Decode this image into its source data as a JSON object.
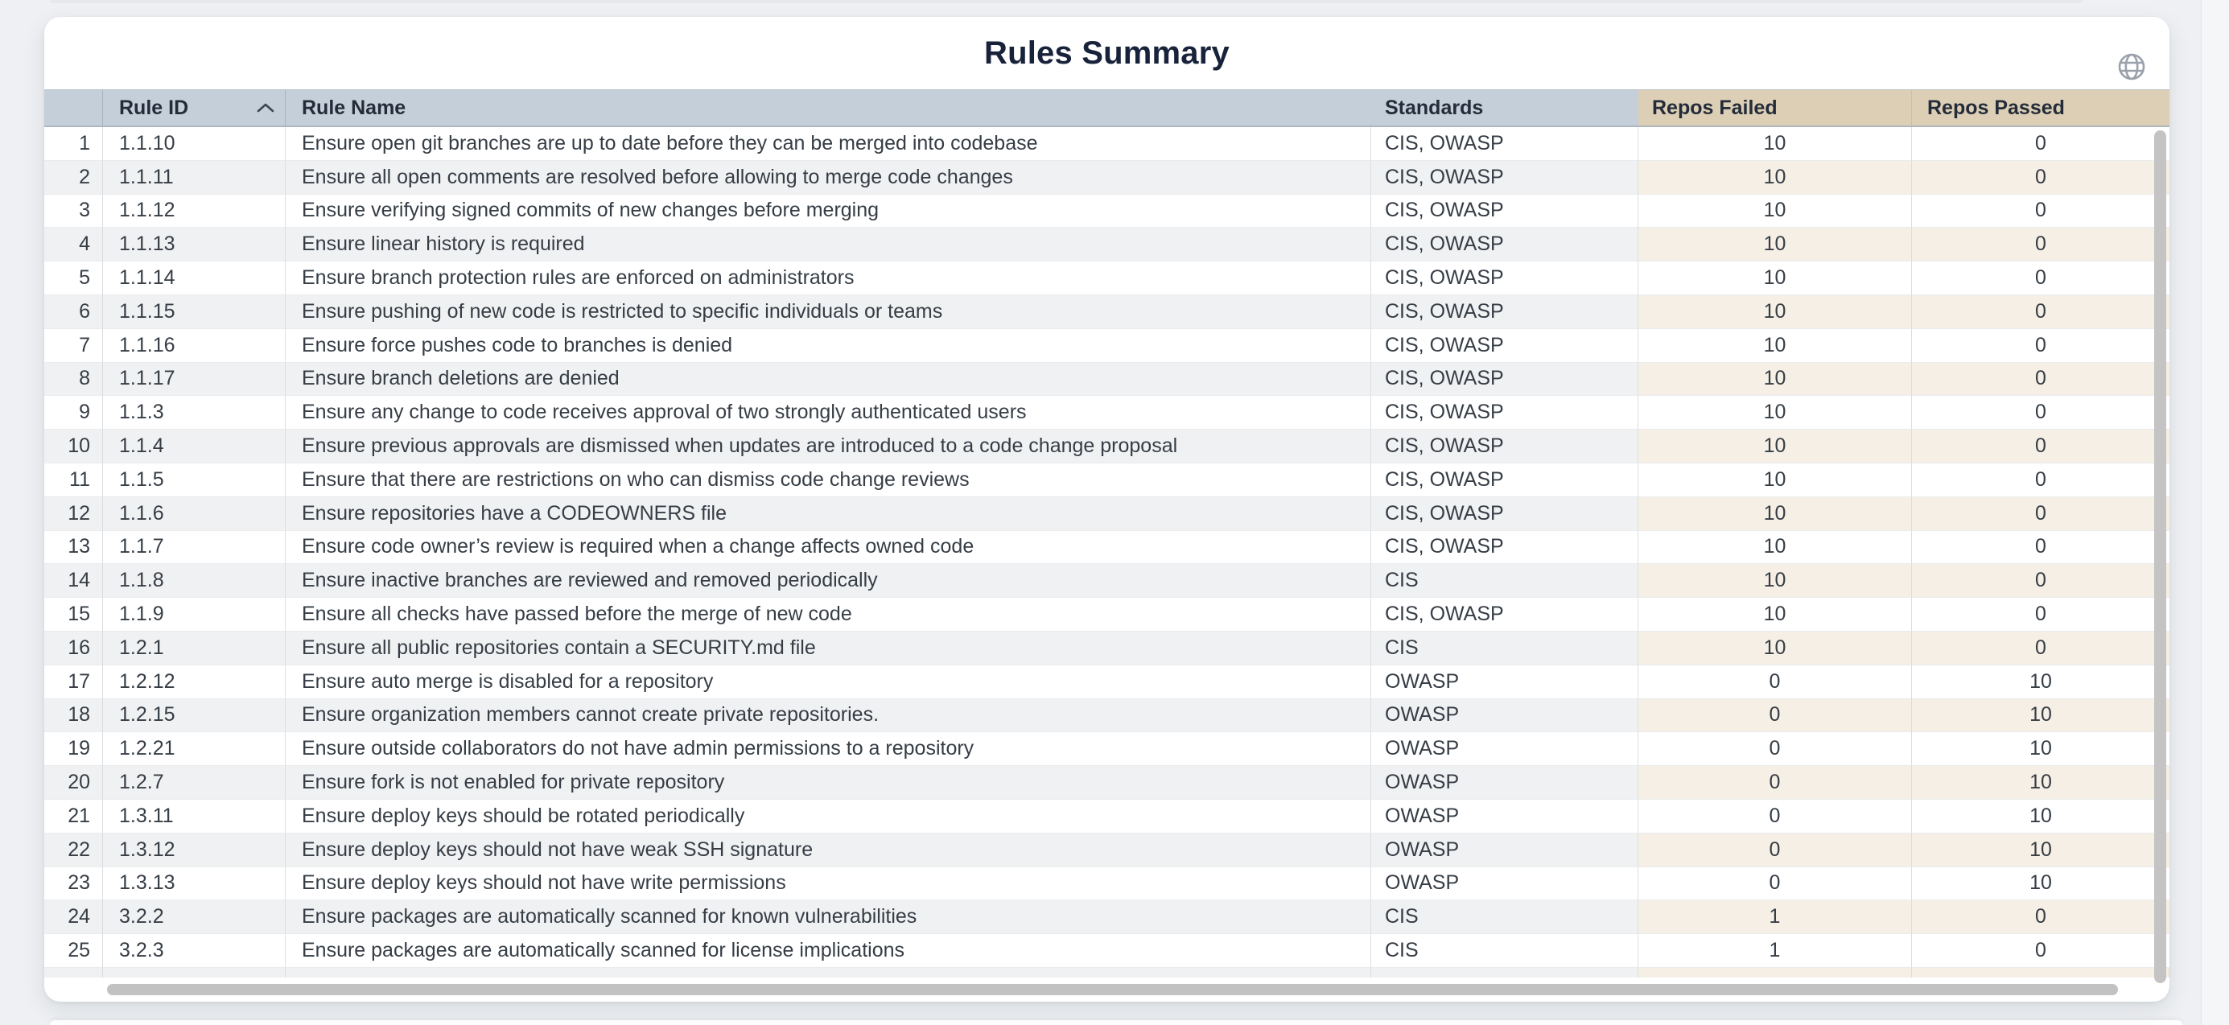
{
  "page": {
    "title": "Rules Summary"
  },
  "colors": {
    "header_blue": "#c5cfda",
    "header_tan": "#ddcfb6",
    "even_row_gray": "#f0f1f2",
    "even_row_beige": "#f6efe5",
    "title_text": "#18223a",
    "cell_text": "#363d45",
    "scrollbar_thumb": "#c2c2c2",
    "globe_icon": "#9aa1ab"
  },
  "sort": {
    "column": "Rule ID",
    "direction": "ascending"
  },
  "table": {
    "columns": [
      {
        "key": "index",
        "label": ""
      },
      {
        "key": "rule_id",
        "label": "Rule ID"
      },
      {
        "key": "rule_name",
        "label": "Rule Name"
      },
      {
        "key": "standards",
        "label": "Standards"
      },
      {
        "key": "repos_failed",
        "label": "Repos Failed"
      },
      {
        "key": "repos_passed",
        "label": "Repos Passed"
      }
    ],
    "rows": [
      {
        "index": 1,
        "rule_id": "1.1.10",
        "rule_name": "Ensure open git branches are up to date before they can be merged into codebase",
        "standards": "CIS, OWASP",
        "repos_failed": 10,
        "repos_passed": 0
      },
      {
        "index": 2,
        "rule_id": "1.1.11",
        "rule_name": "Ensure all open comments are resolved before allowing to merge code changes",
        "standards": "CIS, OWASP",
        "repos_failed": 10,
        "repos_passed": 0
      },
      {
        "index": 3,
        "rule_id": "1.1.12",
        "rule_name": "Ensure verifying signed commits of new changes before merging",
        "standards": "CIS, OWASP",
        "repos_failed": 10,
        "repos_passed": 0
      },
      {
        "index": 4,
        "rule_id": "1.1.13",
        "rule_name": "Ensure linear history is required",
        "standards": "CIS, OWASP",
        "repos_failed": 10,
        "repos_passed": 0
      },
      {
        "index": 5,
        "rule_id": "1.1.14",
        "rule_name": "Ensure branch protection rules are enforced on administrators",
        "standards": "CIS, OWASP",
        "repos_failed": 10,
        "repos_passed": 0
      },
      {
        "index": 6,
        "rule_id": "1.1.15",
        "rule_name": "Ensure pushing of new code is restricted to specific individuals or teams",
        "standards": "CIS, OWASP",
        "repos_failed": 10,
        "repos_passed": 0
      },
      {
        "index": 7,
        "rule_id": "1.1.16",
        "rule_name": "Ensure force pushes code to branches is denied",
        "standards": "CIS, OWASP",
        "repos_failed": 10,
        "repos_passed": 0
      },
      {
        "index": 8,
        "rule_id": "1.1.17",
        "rule_name": "Ensure branch deletions are denied",
        "standards": "CIS, OWASP",
        "repos_failed": 10,
        "repos_passed": 0
      },
      {
        "index": 9,
        "rule_id": "1.1.3",
        "rule_name": "Ensure any change to code receives approval of two strongly authenticated users",
        "standards": "CIS, OWASP",
        "repos_failed": 10,
        "repos_passed": 0
      },
      {
        "index": 10,
        "rule_id": "1.1.4",
        "rule_name": "Ensure previous approvals are dismissed when updates are introduced to a code change proposal",
        "standards": "CIS, OWASP",
        "repos_failed": 10,
        "repos_passed": 0
      },
      {
        "index": 11,
        "rule_id": "1.1.5",
        "rule_name": "Ensure that there are restrictions on who can dismiss code change reviews",
        "standards": "CIS, OWASP",
        "repos_failed": 10,
        "repos_passed": 0
      },
      {
        "index": 12,
        "rule_id": "1.1.6",
        "rule_name": "Ensure repositories have a CODEOWNERS file",
        "standards": "CIS, OWASP",
        "repos_failed": 10,
        "repos_passed": 0
      },
      {
        "index": 13,
        "rule_id": "1.1.7",
        "rule_name": "Ensure code owner’s review is required when a change affects owned code",
        "standards": "CIS, OWASP",
        "repos_failed": 10,
        "repos_passed": 0
      },
      {
        "index": 14,
        "rule_id": "1.1.8",
        "rule_name": "Ensure inactive branches are reviewed and removed periodically",
        "standards": "CIS",
        "repos_failed": 10,
        "repos_passed": 0
      },
      {
        "index": 15,
        "rule_id": "1.1.9",
        "rule_name": "Ensure all checks have passed before the merge of new code",
        "standards": "CIS, OWASP",
        "repos_failed": 10,
        "repos_passed": 0
      },
      {
        "index": 16,
        "rule_id": "1.2.1",
        "rule_name": "Ensure all public repositories contain a SECURITY.md file",
        "standards": "CIS",
        "repos_failed": 10,
        "repos_passed": 0
      },
      {
        "index": 17,
        "rule_id": "1.2.12",
        "rule_name": "Ensure auto merge is disabled for a repository",
        "standards": "OWASP",
        "repos_failed": 0,
        "repos_passed": 10
      },
      {
        "index": 18,
        "rule_id": "1.2.15",
        "rule_name": "Ensure organization members cannot create private repositories.",
        "standards": "OWASP",
        "repos_failed": 0,
        "repos_passed": 10
      },
      {
        "index": 19,
        "rule_id": "1.2.21",
        "rule_name": "Ensure outside collaborators do not have admin permissions to a repository",
        "standards": "OWASP",
        "repos_failed": 0,
        "repos_passed": 10
      },
      {
        "index": 20,
        "rule_id": "1.2.7",
        "rule_name": "Ensure fork is not enabled for private repository",
        "standards": "OWASP",
        "repos_failed": 0,
        "repos_passed": 10
      },
      {
        "index": 21,
        "rule_id": "1.3.11",
        "rule_name": "Ensure deploy keys should be rotated periodically",
        "standards": "OWASP",
        "repos_failed": 0,
        "repos_passed": 10
      },
      {
        "index": 22,
        "rule_id": "1.3.12",
        "rule_name": "Ensure deploy keys should not have weak SSH signature",
        "standards": "OWASP",
        "repos_failed": 0,
        "repos_passed": 10
      },
      {
        "index": 23,
        "rule_id": "1.3.13",
        "rule_name": "Ensure deploy keys should not have write permissions",
        "standards": "OWASP",
        "repos_failed": 0,
        "repos_passed": 10
      },
      {
        "index": 24,
        "rule_id": "3.2.2",
        "rule_name": "Ensure packages are automatically scanned for known vulnerabilities",
        "standards": "CIS",
        "repos_failed": 1,
        "repos_passed": 0
      },
      {
        "index": 25,
        "rule_id": "3.2.3",
        "rule_name": "Ensure packages are automatically scanned for license implications",
        "standards": "CIS",
        "repos_failed": 1,
        "repos_passed": 0
      }
    ]
  }
}
